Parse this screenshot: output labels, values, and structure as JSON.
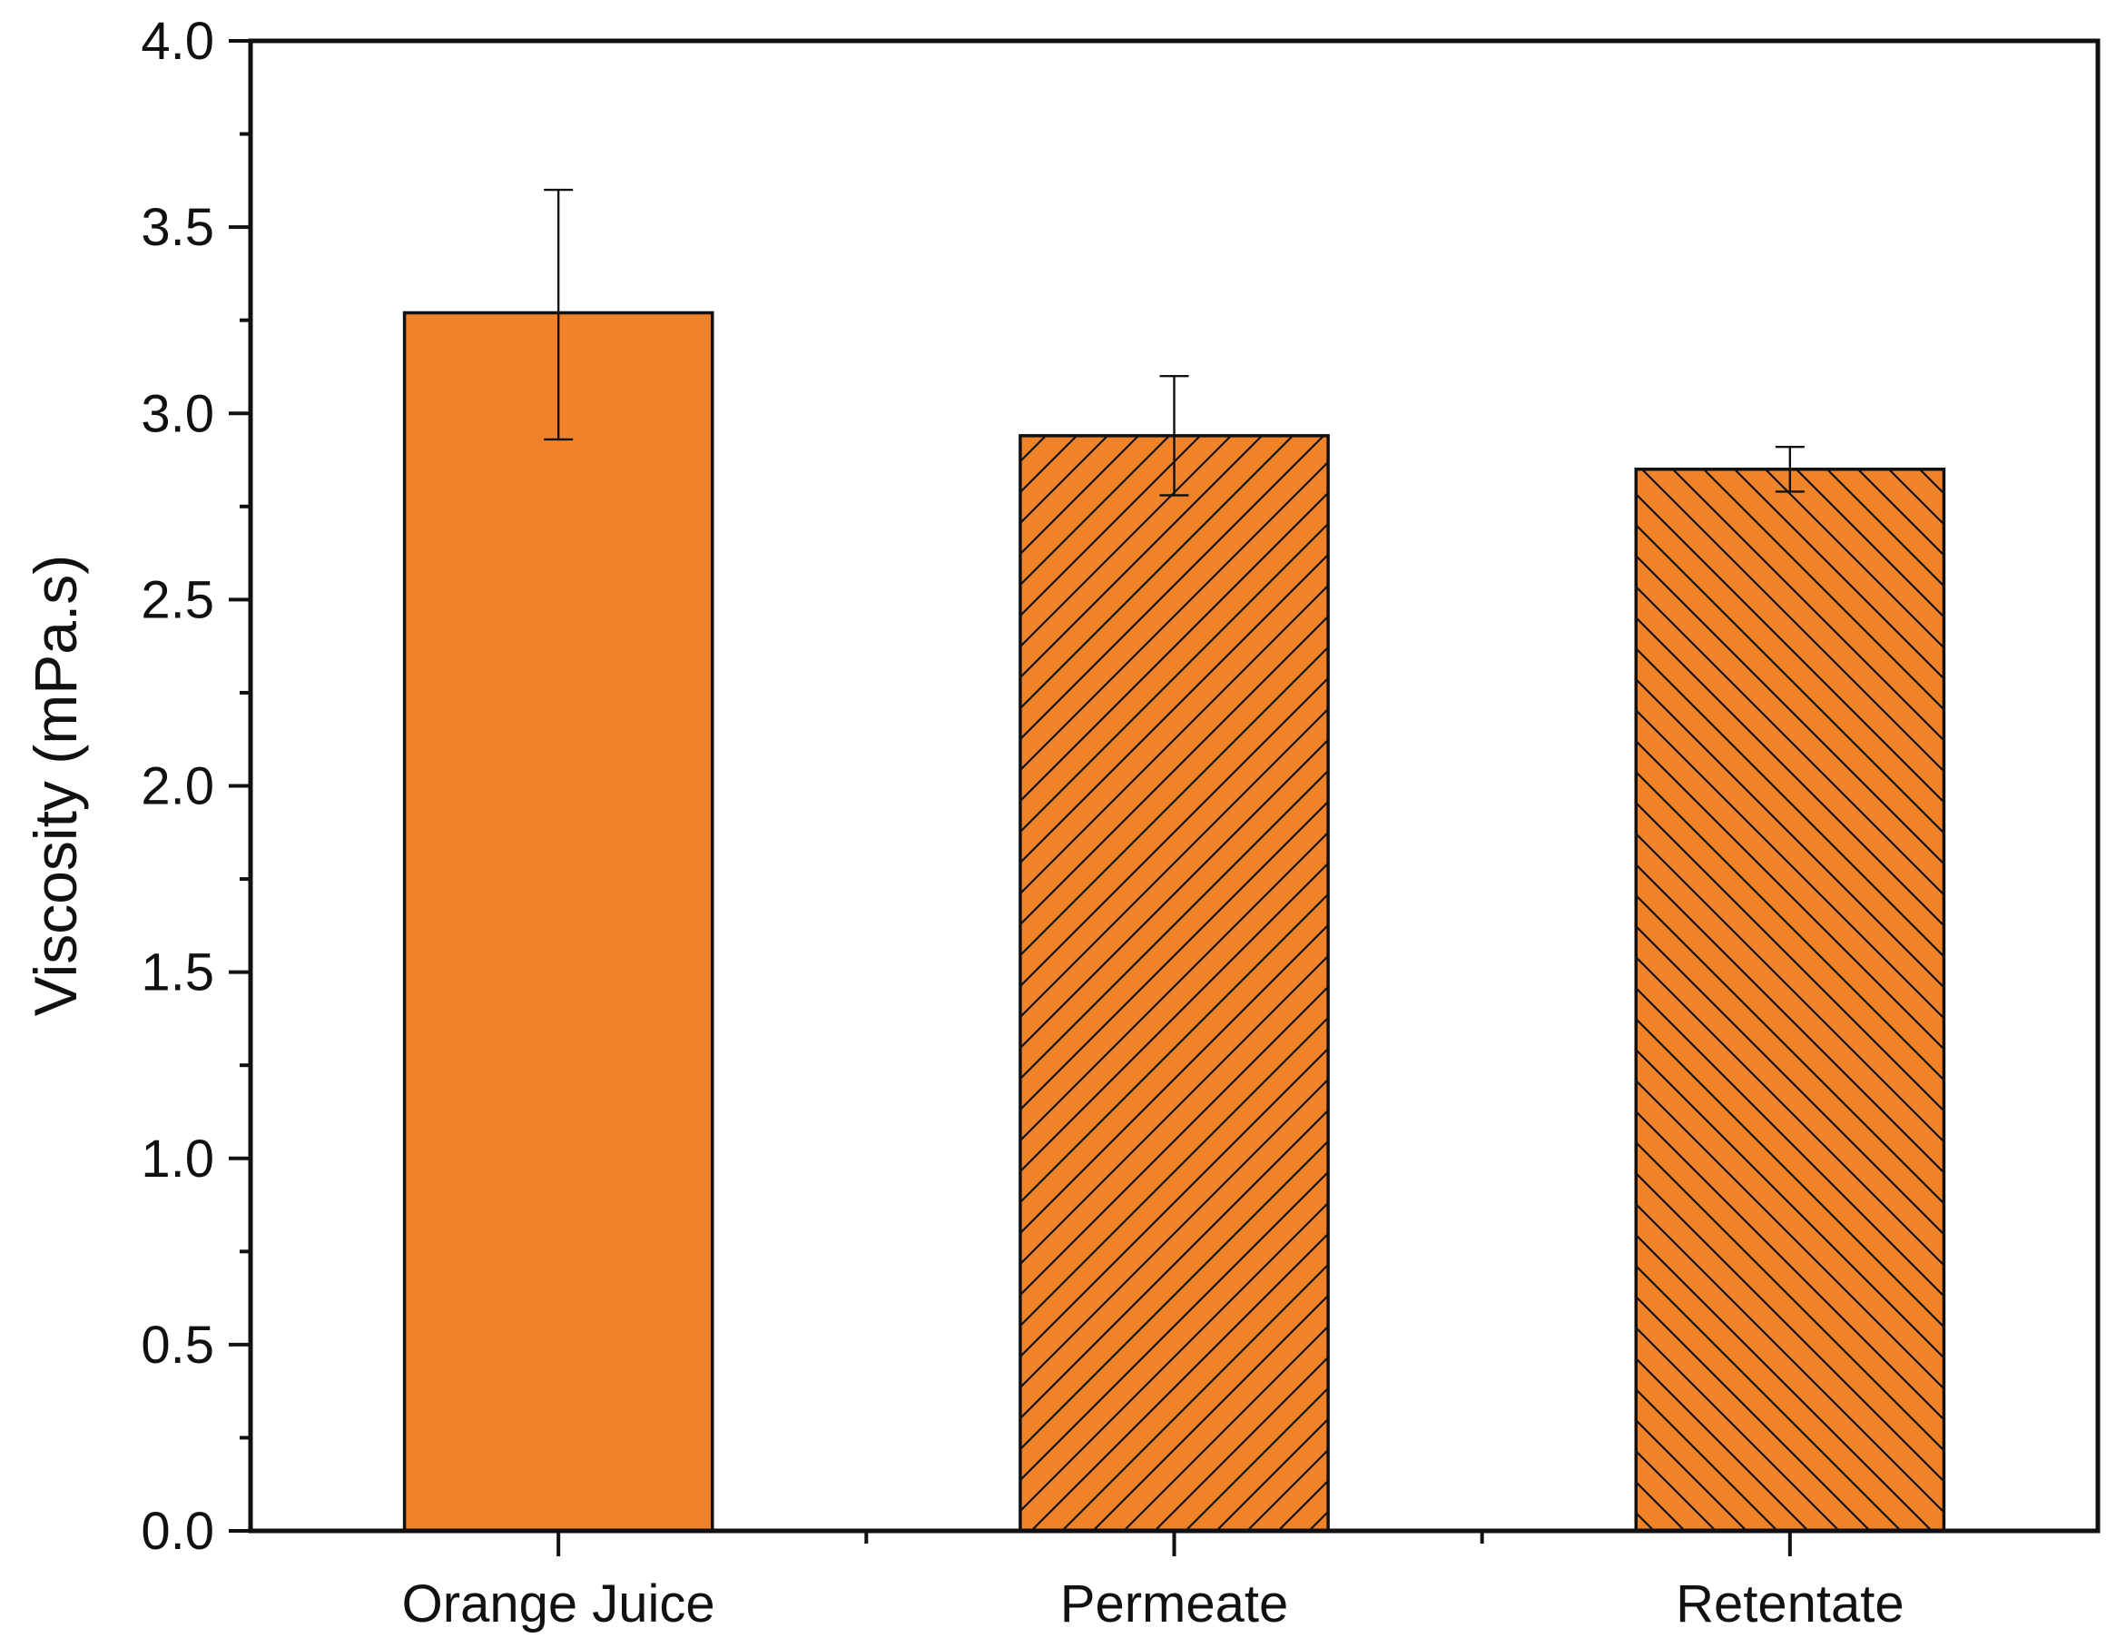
{
  "chart_data": {
    "type": "bar",
    "title": "",
    "xlabel": "",
    "ylabel": "Viscosity (mPa.s)",
    "ylim": [
      0,
      4.0
    ],
    "y_ticks": [
      "0.0",
      "0.5",
      "1.0",
      "1.5",
      "2.0",
      "2.5",
      "3.0",
      "3.5",
      "4.0"
    ],
    "y_tick_values": [
      0,
      0.5,
      1.0,
      1.5,
      2.0,
      2.5,
      3.0,
      3.5,
      4.0
    ],
    "grid": false,
    "categories": [
      "Orange Juice",
      "Permeate",
      "Retentate"
    ],
    "values": [
      3.27,
      2.94,
      2.85
    ],
    "error_low": [
      2.93,
      2.78,
      2.79
    ],
    "error_high": [
      3.6,
      3.1,
      2.91
    ],
    "patterns": [
      "solid",
      "diagonal-up",
      "diagonal-down"
    ],
    "bar_color": "#F0832A",
    "edge_color": "#111111"
  }
}
